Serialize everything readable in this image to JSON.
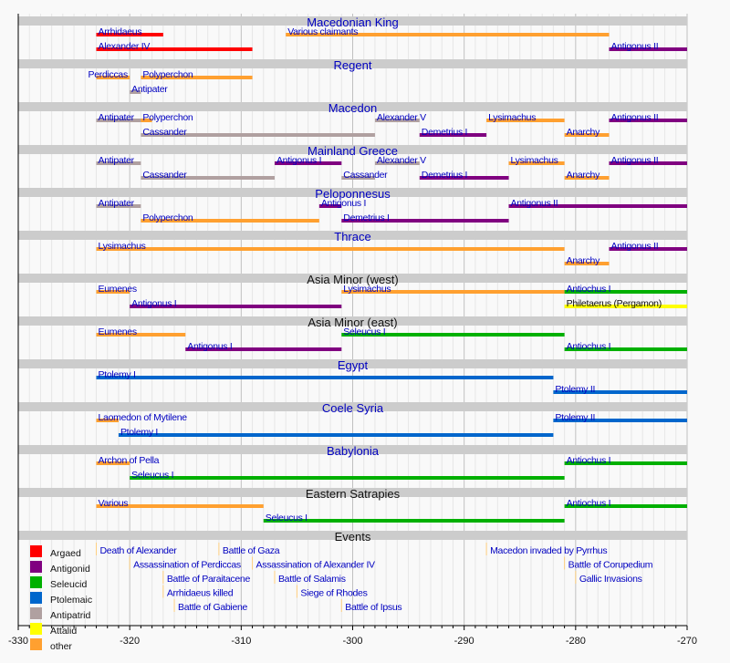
{
  "chart_data": {
    "type": "timeline",
    "xlim": [
      -330,
      -270
    ],
    "x_ticks": [
      -330,
      -320,
      -310,
      -300,
      -290,
      -280,
      -270
    ],
    "grid": true,
    "legend_position": "bottom-left",
    "legend": [
      {
        "name": "Argaed",
        "color": "#ff0000"
      },
      {
        "name": "Antigonid",
        "color": "#800080"
      },
      {
        "name": "Seleucid",
        "color": "#00b000"
      },
      {
        "name": "Ptolemaic",
        "color": "#0066cc"
      },
      {
        "name": "Antipatrid",
        "color": "#b0a0a0"
      },
      {
        "name": "Attalid",
        "color": "#ffff00"
      },
      {
        "name": "other",
        "color": "#ffa030"
      }
    ],
    "sections": [
      {
        "title": "Macedonian King",
        "link": true,
        "bars": [
          {
            "label": "Arrhidaeus",
            "start": -323,
            "end": -317,
            "group": "Argaed",
            "row": 1
          },
          {
            "label": "Various claimants",
            "start": -306,
            "end": -277,
            "group": "other",
            "row": 1
          },
          {
            "label": "Alexander IV",
            "start": -323,
            "end": -309,
            "group": "Argaed",
            "row": 2
          },
          {
            "label": "Antigonus II",
            "start": -277,
            "end": -270,
            "group": "Antigonid",
            "row": 2
          }
        ]
      },
      {
        "title": "Regent",
        "link": true,
        "bars": [
          {
            "label": "Perdiccas",
            "start": -323,
            "end": -320,
            "group": "other",
            "row": 1,
            "label_before": true
          },
          {
            "label": "Polyperchon",
            "start": -319,
            "end": -309,
            "group": "other",
            "row": 1
          },
          {
            "label": "Antipater",
            "start": -320,
            "end": -319,
            "group": "Antipatrid",
            "row": 2
          }
        ]
      },
      {
        "title": "Macedon",
        "link": true,
        "bars": [
          {
            "label": "Antipater",
            "start": -323,
            "end": -319,
            "group": "Antipatrid",
            "row": 1
          },
          {
            "label": "Polyperchon",
            "start": -319,
            "end": -318,
            "group": "other",
            "row": 1
          },
          {
            "label": "Alexander V",
            "start": -298,
            "end": -294,
            "group": "Antipatrid",
            "row": 1
          },
          {
            "label": "Lysimachus",
            "start": -288,
            "end": -281,
            "group": "other",
            "row": 1
          },
          {
            "label": "Antigonus II",
            "start": -277,
            "end": -270,
            "group": "Antigonid",
            "row": 1
          },
          {
            "label": "Cassander",
            "start": -319,
            "end": -298,
            "group": "Antipatrid",
            "row": 2
          },
          {
            "label": "Demetrius I",
            "start": -294,
            "end": -288,
            "group": "Antigonid",
            "row": 2
          },
          {
            "label": "Anarchy",
            "start": -281,
            "end": -277,
            "group": "other",
            "row": 2
          }
        ]
      },
      {
        "title": "Mainland Greece",
        "link": true,
        "bars": [
          {
            "label": "Antipater",
            "start": -323,
            "end": -319,
            "group": "Antipatrid",
            "row": 1
          },
          {
            "label": "Antigonus I",
            "start": -307,
            "end": -301,
            "group": "Antigonid",
            "row": 1
          },
          {
            "label": "Alexander V",
            "start": -298,
            "end": -294,
            "group": "Antipatrid",
            "row": 1
          },
          {
            "label": "Lysimachus",
            "start": -286,
            "end": -281,
            "group": "other",
            "row": 1
          },
          {
            "label": "Antigonus II",
            "start": -277,
            "end": -270,
            "group": "Antigonid",
            "row": 1
          },
          {
            "label": "Cassander",
            "start": -319,
            "end": -307,
            "group": "Antipatrid",
            "row": 2
          },
          {
            "label": "Cassander",
            "start": -301,
            "end": -298,
            "group": "Antipatrid",
            "row": 2
          },
          {
            "label": "Demetrius I",
            "start": -294,
            "end": -286,
            "group": "Antigonid",
            "row": 2
          },
          {
            "label": "Anarchy",
            "start": -281,
            "end": -277,
            "group": "other",
            "row": 2
          }
        ]
      },
      {
        "title": "Peloponnesus",
        "link": true,
        "bars": [
          {
            "label": "Antipater",
            "start": -323,
            "end": -319,
            "group": "Antipatrid",
            "row": 1
          },
          {
            "label": "Antigonus I",
            "start": -303,
            "end": -301,
            "group": "Antigonid",
            "row": 1
          },
          {
            "label": "Antigonus II",
            "start": -286,
            "end": -270,
            "group": "Antigonid",
            "row": 1
          },
          {
            "label": "Polyperchon",
            "start": -319,
            "end": -303,
            "group": "other",
            "row": 2
          },
          {
            "label": "Demetrius I",
            "start": -301,
            "end": -286,
            "group": "Antigonid",
            "row": 2
          }
        ]
      },
      {
        "title": "Thrace",
        "link": true,
        "bars": [
          {
            "label": "Lysimachus",
            "start": -323,
            "end": -281,
            "group": "other",
            "row": 1
          },
          {
            "label": "Antigonus II",
            "start": -277,
            "end": -270,
            "group": "Antigonid",
            "row": 1
          },
          {
            "label": "Anarchy",
            "start": -281,
            "end": -277,
            "group": "other",
            "row": 2
          }
        ]
      },
      {
        "title": "Asia Minor (west)",
        "link": false,
        "bars": [
          {
            "label": "Eumenes",
            "start": -323,
            "end": -320,
            "group": "other",
            "row": 1
          },
          {
            "label": "Lysimachus",
            "start": -301,
            "end": -281,
            "group": "other",
            "row": 1
          },
          {
            "label": "Antiochus I",
            "start": -281,
            "end": -270,
            "group": "Seleucid",
            "row": 1
          },
          {
            "label": "Antigonus I",
            "start": -320,
            "end": -301,
            "group": "Antigonid",
            "row": 2
          },
          {
            "label": "Philetaerus (Pergamon)",
            "start": -281,
            "end": -270,
            "group": "Attalid",
            "row": 2
          }
        ]
      },
      {
        "title": "Asia Minor (east)",
        "link": false,
        "bars": [
          {
            "label": "Eumenes",
            "start": -323,
            "end": -315,
            "group": "other",
            "row": 1
          },
          {
            "label": "Seleucus I",
            "start": -301,
            "end": -281,
            "group": "Seleucid",
            "row": 1
          },
          {
            "label": "Antigonus I",
            "start": -315,
            "end": -301,
            "group": "Antigonid",
            "row": 2
          },
          {
            "label": "Antiochus I",
            "start": -281,
            "end": -270,
            "group": "Seleucid",
            "row": 2
          }
        ]
      },
      {
        "title": "Egypt",
        "link": true,
        "bars": [
          {
            "label": "Ptolemy I",
            "start": -323,
            "end": -282,
            "group": "Ptolemaic",
            "row": 1
          },
          {
            "label": "Ptolemy II",
            "start": -282,
            "end": -270,
            "group": "Ptolemaic",
            "row": 2
          }
        ]
      },
      {
        "title": "Coele Syria",
        "link": true,
        "bars": [
          {
            "label": "Laomedon of Mytilene",
            "start": -323,
            "end": -321,
            "group": "other",
            "row": 1
          },
          {
            "label": "Ptolemy II",
            "start": -282,
            "end": -270,
            "group": "Ptolemaic",
            "row": 1
          },
          {
            "label": "Ptolemy I",
            "start": -321,
            "end": -282,
            "group": "Ptolemaic",
            "row": 2
          }
        ]
      },
      {
        "title": "Babylonia",
        "link": true,
        "bars": [
          {
            "label": "Archon of Pella",
            "start": -323,
            "end": -320,
            "group": "other",
            "row": 1
          },
          {
            "label": "Antiochus I",
            "start": -281,
            "end": -270,
            "group": "Seleucid",
            "row": 1
          },
          {
            "label": "Seleucus I",
            "start": -320,
            "end": -281,
            "group": "Seleucid",
            "row": 2
          }
        ]
      },
      {
        "title": "Eastern Satrapies",
        "link": false,
        "bars": [
          {
            "label": "Various",
            "start": -323,
            "end": -308,
            "group": "other",
            "row": 1
          },
          {
            "label": "Antiochus I",
            "start": -281,
            "end": -270,
            "group": "Seleucid",
            "row": 1
          },
          {
            "label": "Seleucus I",
            "start": -308,
            "end": -281,
            "group": "Seleucid",
            "row": 2
          }
        ]
      }
    ],
    "events_title": "Events",
    "events": [
      {
        "label": "Death of Alexander",
        "year": -323,
        "row": 1
      },
      {
        "label": "Battle of Gaza",
        "year": -312,
        "row": 1
      },
      {
        "label": "Macedon invaded by Pyrrhus",
        "year": -288,
        "row": 1
      },
      {
        "label": "Assassination of Perdiccas",
        "year": -320,
        "row": 2
      },
      {
        "label": "Assassination of Alexander IV",
        "year": -309,
        "row": 2
      },
      {
        "label": "Battle of Corupedium",
        "year": -281,
        "row": 2
      },
      {
        "label": "Battle of Paraitacene",
        "year": -317,
        "row": 3
      },
      {
        "label": "Battle of Salamis",
        "year": -307,
        "row": 3
      },
      {
        "label": "Gallic Invasions",
        "year": -280,
        "row": 3
      },
      {
        "label": "Arrhidaeus killed",
        "year": -317,
        "row": 4
      },
      {
        "label": "Siege of Rhodes",
        "year": -305,
        "row": 4
      },
      {
        "label": "Battle of Gabiene",
        "year": -316,
        "row": 5
      },
      {
        "label": "Battle of Ipsus",
        "year": -301,
        "row": 5
      }
    ]
  }
}
